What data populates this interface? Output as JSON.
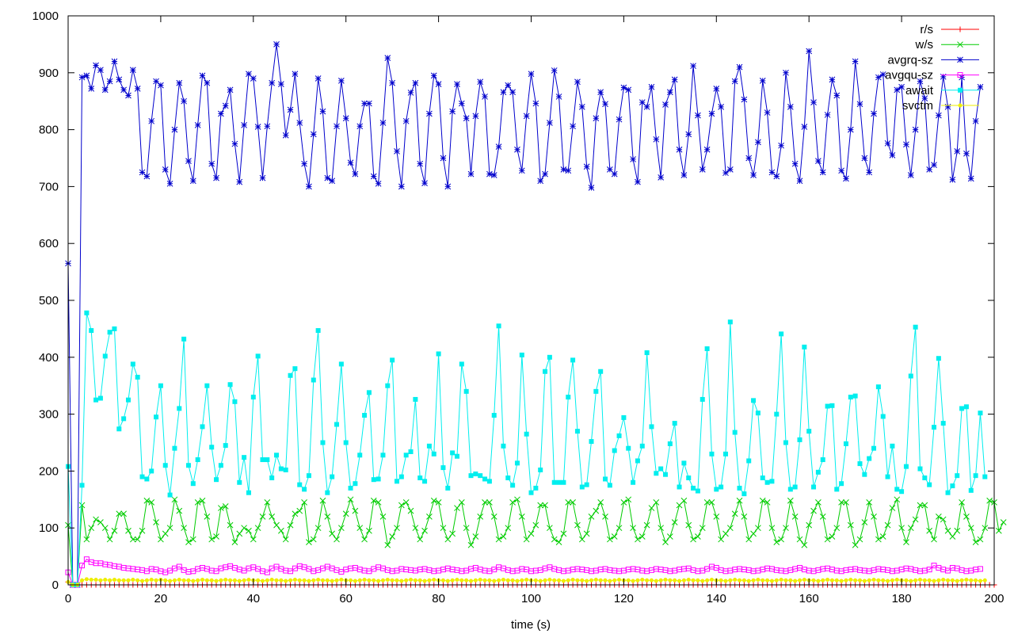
{
  "chart_data": {
    "type": "line",
    "title": "",
    "xlabel": "time (s)",
    "ylabel": "",
    "xlim": [
      0,
      200
    ],
    "ylim": [
      0,
      1000
    ],
    "xticks": [
      0,
      20,
      40,
      60,
      80,
      100,
      120,
      140,
      160,
      180,
      200
    ],
    "yticks": [
      0,
      100,
      200,
      300,
      400,
      500,
      600,
      700,
      800,
      900,
      1000
    ],
    "grid": false,
    "legend_position": "top-right",
    "series": [
      {
        "name": "r/s",
        "color": "#ff0000",
        "marker": "plus",
        "values": [
          5,
          0,
          0,
          0,
          0,
          0,
          0,
          0,
          0,
          0,
          0,
          0,
          0,
          0,
          0,
          0,
          0,
          0,
          0,
          0,
          0,
          0,
          0,
          0,
          0,
          0,
          0,
          0,
          0,
          0,
          0,
          0,
          0,
          0,
          0,
          0,
          0,
          0,
          0,
          0,
          0,
          0,
          0,
          0,
          0,
          0,
          0,
          0,
          0,
          0,
          0,
          0,
          0,
          0,
          0,
          0,
          0,
          0,
          0,
          0,
          0,
          0,
          0,
          0,
          0,
          0,
          0,
          0,
          0,
          0,
          0,
          0,
          0,
          0,
          0,
          0,
          0,
          0,
          0,
          0,
          0,
          0,
          0,
          0,
          0,
          0,
          0,
          0,
          0,
          0,
          0,
          0,
          0,
          0,
          0,
          0,
          0,
          0,
          0,
          0,
          0,
          0,
          0,
          0,
          0,
          0,
          0,
          0,
          0,
          0,
          0,
          0,
          0,
          0,
          0,
          0,
          0,
          0,
          0,
          0,
          0,
          0,
          0,
          0,
          0,
          0,
          0,
          0,
          0,
          0,
          0,
          0,
          0,
          0,
          0,
          0,
          0,
          0,
          0,
          0,
          0,
          0,
          0,
          0,
          0,
          0,
          0,
          0,
          0,
          0,
          0,
          0,
          0,
          0,
          0,
          0,
          0,
          0,
          0,
          0,
          0,
          0,
          0,
          0,
          0,
          0,
          0,
          0,
          0,
          0,
          0,
          0,
          0,
          0,
          0,
          0,
          0,
          0,
          0,
          0,
          0,
          0,
          0,
          0,
          0,
          0,
          0,
          0,
          0,
          0,
          0,
          0,
          0,
          0,
          0,
          0,
          0,
          0,
          0,
          0,
          0
        ]
      },
      {
        "name": "w/s",
        "color": "#00cc00",
        "marker": "cross",
        "values": [
          105,
          0,
          0,
          140,
          80,
          100,
          115,
          110,
          100,
          80,
          95,
          125,
          125,
          95,
          80,
          80,
          95,
          148,
          145,
          110,
          80,
          90,
          100,
          150,
          130,
          100,
          75,
          80,
          145,
          148,
          120,
          80,
          85,
          135,
          138,
          105,
          75,
          90,
          100,
          95,
          80,
          100,
          120,
          145,
          120,
          105,
          95,
          80,
          105,
          125,
          130,
          145,
          75,
          80,
          100,
          148,
          120,
          90,
          80,
          100,
          125,
          150,
          130,
          100,
          80,
          95,
          148,
          145,
          120,
          70,
          85,
          100,
          140,
          145,
          130,
          100,
          80,
          95,
          120,
          148,
          145,
          100,
          80,
          90,
          135,
          145,
          100,
          70,
          85,
          120,
          145,
          145,
          120,
          80,
          85,
          100,
          145,
          150,
          120,
          80,
          90,
          105,
          140,
          140,
          100,
          80,
          75,
          90,
          145,
          145,
          105,
          80,
          90,
          120,
          130,
          145,
          120,
          80,
          85,
          100,
          145,
          150,
          100,
          80,
          85,
          105,
          135,
          145,
          100,
          75,
          85,
          110,
          140,
          148,
          105,
          80,
          85,
          100,
          145,
          145,
          120,
          80,
          90,
          100,
          125,
          148,
          120,
          80,
          90,
          100,
          148,
          145,
          100,
          75,
          80,
          100,
          148,
          120,
          80,
          70,
          105,
          130,
          145,
          120,
          80,
          85,
          100,
          145,
          145,
          105,
          70,
          80,
          110,
          145,
          120,
          80,
          85,
          105,
          135,
          150,
          100,
          75,
          100,
          115,
          140,
          140,
          95,
          80,
          120,
          115,
          95,
          85,
          95,
          145,
          120,
          100,
          75,
          80,
          100,
          148,
          145,
          95,
          110
        ]
      },
      {
        "name": "avgrq-sz",
        "color": "#0000cc",
        "marker": "star",
        "values": [
          565,
          0,
          0,
          892,
          895,
          872,
          913,
          905,
          870,
          885,
          920,
          888,
          870,
          860,
          905,
          872,
          725,
          718,
          815,
          885,
          878,
          730,
          705,
          800,
          882,
          850,
          745,
          710,
          808,
          895,
          882,
          740,
          715,
          828,
          842,
          870,
          775,
          708,
          808,
          898,
          890,
          805,
          715,
          806,
          882,
          950,
          880,
          790,
          835,
          898,
          812,
          740,
          700,
          792,
          890,
          832,
          715,
          710,
          806,
          886,
          820,
          742,
          722,
          806,
          846,
          846,
          718,
          705,
          812,
          926,
          882,
          762,
          700,
          815,
          865,
          882,
          740,
          706,
          828,
          895,
          880,
          750,
          700,
          832,
          880,
          846,
          820,
          722,
          824,
          884,
          858,
          722,
          720,
          770,
          866,
          878,
          866,
          765,
          728,
          824,
          898,
          846,
          710,
          722,
          812,
          904,
          858,
          730,
          728,
          806,
          884,
          840,
          735,
          698,
          820,
          866,
          845,
          730,
          722,
          818,
          874,
          870,
          748,
          708,
          848,
          840,
          875,
          783,
          716,
          844,
          866,
          888,
          765,
          720,
          792,
          912,
          825,
          730,
          765,
          828,
          872,
          840,
          724,
          730,
          885,
          910,
          853,
          750,
          720,
          778,
          886,
          830,
          725,
          718,
          772,
          900,
          840,
          740,
          710,
          805,
          938,
          848,
          745,
          725,
          826,
          888,
          860,
          728,
          714,
          800,
          920,
          845,
          750,
          725,
          828,
          892,
          897,
          776,
          755,
          870,
          875,
          774,
          720,
          800,
          885,
          855,
          730,
          738,
          825,
          893,
          840,
          712,
          762,
          892,
          758,
          714,
          815,
          875
        ]
      },
      {
        "name": "avgqu-sz",
        "color": "#ff00ff",
        "marker": "square",
        "values": [
          22,
          0,
          0,
          34,
          45,
          40,
          38,
          38,
          36,
          35,
          33,
          32,
          30,
          29,
          28,
          27,
          26,
          24,
          28,
          27,
          24,
          22,
          25,
          29,
          32,
          26,
          23,
          24,
          28,
          30,
          28,
          25,
          24,
          29,
          31,
          33,
          30,
          27,
          25,
          29,
          31,
          28,
          24,
          22,
          29,
          32,
          28,
          25,
          24,
          29,
          33,
          31,
          28,
          24,
          26,
          29,
          32,
          29,
          26,
          23,
          27,
          29,
          30,
          27,
          25,
          24,
          28,
          31,
          29,
          26,
          24,
          25,
          28,
          27,
          26,
          25,
          27,
          28,
          26,
          24,
          25,
          27,
          29,
          27,
          26,
          24,
          25,
          28,
          30,
          27,
          25,
          24,
          27,
          31,
          29,
          26,
          24,
          25,
          28,
          27,
          24,
          25,
          26,
          29,
          31,
          28,
          26,
          24,
          25,
          27,
          28,
          27,
          26,
          24,
          25,
          27,
          28,
          26,
          25,
          24,
          25,
          27,
          28,
          27,
          25,
          24,
          26,
          28,
          27,
          26,
          24,
          25,
          27,
          28,
          29,
          26,
          24,
          25,
          28,
          32,
          30,
          26,
          24,
          25,
          27,
          28,
          27,
          26,
          24,
          25,
          27,
          29,
          28,
          26,
          25,
          24,
          26,
          28,
          30,
          27,
          25,
          24,
          26,
          28,
          29,
          27,
          25,
          24,
          26,
          27,
          28,
          26,
          25,
          24,
          26,
          28,
          27,
          26,
          24,
          25,
          27,
          29,
          28,
          26,
          24,
          25,
          27,
          34,
          30,
          27,
          25,
          30,
          29,
          26,
          24,
          25,
          27,
          28
        ]
      },
      {
        "name": "await",
        "color": "#00eeee",
        "marker": "filled-square",
        "values": [
          208,
          0,
          0,
          175,
          478,
          447,
          325,
          328,
          402,
          444,
          450,
          274,
          292,
          325,
          388,
          365,
          190,
          186,
          200,
          295,
          350,
          210,
          158,
          240,
          310,
          432,
          210,
          178,
          220,
          278,
          350,
          242,
          185,
          210,
          245,
          352,
          322,
          180,
          224,
          162,
          330,
          402,
          220,
          220,
          188,
          228,
          204,
          202,
          368,
          380,
          176,
          168,
          192,
          360,
          447,
          250,
          162,
          190,
          282,
          388,
          250,
          170,
          178,
          228,
          298,
          338,
          185,
          186,
          228,
          350,
          395,
          182,
          190,
          228,
          234,
          326,
          188,
          182,
          244,
          230,
          406,
          206,
          170,
          232,
          226,
          388,
          340,
          192,
          195,
          192,
          186,
          182,
          298,
          455,
          244,
          188,
          175,
          214,
          404,
          265,
          162,
          170,
          202,
          375,
          400,
          180,
          180,
          180,
          330,
          395,
          270,
          172,
          176,
          252,
          340,
          375,
          186,
          175,
          236,
          262,
          294,
          240,
          180,
          218,
          244,
          408,
          278,
          196,
          204,
          194,
          248,
          284,
          172,
          214,
          188,
          170,
          165,
          326,
          415,
          230,
          168,
          172,
          230,
          462,
          268,
          170,
          160,
          218,
          324,
          302,
          188,
          180,
          182,
          300,
          441,
          250,
          168,
          172,
          255,
          418,
          270,
          172,
          198,
          220,
          314,
          315,
          168,
          178,
          248,
          330,
          332,
          213,
          194,
          222,
          240,
          348,
          296,
          190,
          244,
          168,
          164,
          208,
          367,
          453,
          204,
          188,
          176,
          277,
          398,
          284,
          162,
          174,
          192,
          310,
          313,
          166,
          192,
          302,
          190
        ]
      },
      {
        "name": "svctm",
        "color": "#eeee00",
        "marker": "filled-circle",
        "values": [
          5,
          0,
          0,
          8,
          10,
          9,
          9,
          8,
          9,
          8,
          9,
          8,
          8,
          8,
          9,
          8,
          7,
          8,
          9,
          8,
          9,
          8,
          7,
          8,
          9,
          8,
          8,
          7,
          8,
          9,
          8,
          8,
          7,
          8,
          9,
          8,
          8,
          7,
          8,
          9,
          8,
          8,
          7,
          8,
          9,
          8,
          8,
          7,
          8,
          9,
          8,
          8,
          7,
          8,
          9,
          8,
          8,
          7,
          8,
          9,
          8,
          8,
          7,
          8,
          9,
          8,
          8,
          7,
          8,
          9,
          8,
          8,
          7,
          8,
          9,
          8,
          8,
          7,
          8,
          9,
          8,
          8,
          7,
          8,
          9,
          8,
          8,
          7,
          8,
          9,
          8,
          8,
          7,
          8,
          9,
          8,
          8,
          7,
          8,
          9,
          8,
          8,
          7,
          8,
          9,
          8,
          8,
          7,
          8,
          9,
          8,
          8,
          7,
          8,
          9,
          8,
          8,
          7,
          8,
          9,
          8,
          8,
          7,
          8,
          9,
          8,
          8,
          7,
          8,
          9,
          8,
          8,
          7,
          8,
          9,
          8,
          8,
          7,
          8,
          9,
          8,
          8,
          7,
          8,
          9,
          8,
          8,
          7,
          8,
          9,
          8,
          8,
          7,
          8,
          9,
          8,
          8,
          7,
          8,
          9,
          8,
          8,
          7,
          8,
          9,
          8,
          8,
          7,
          8,
          9,
          8,
          8,
          7,
          8,
          9,
          8,
          8,
          7,
          8,
          9,
          8,
          8,
          7,
          8,
          9,
          8,
          8,
          7,
          8,
          9,
          8,
          8,
          7,
          8,
          9,
          8,
          8,
          7,
          8
        ]
      }
    ]
  }
}
